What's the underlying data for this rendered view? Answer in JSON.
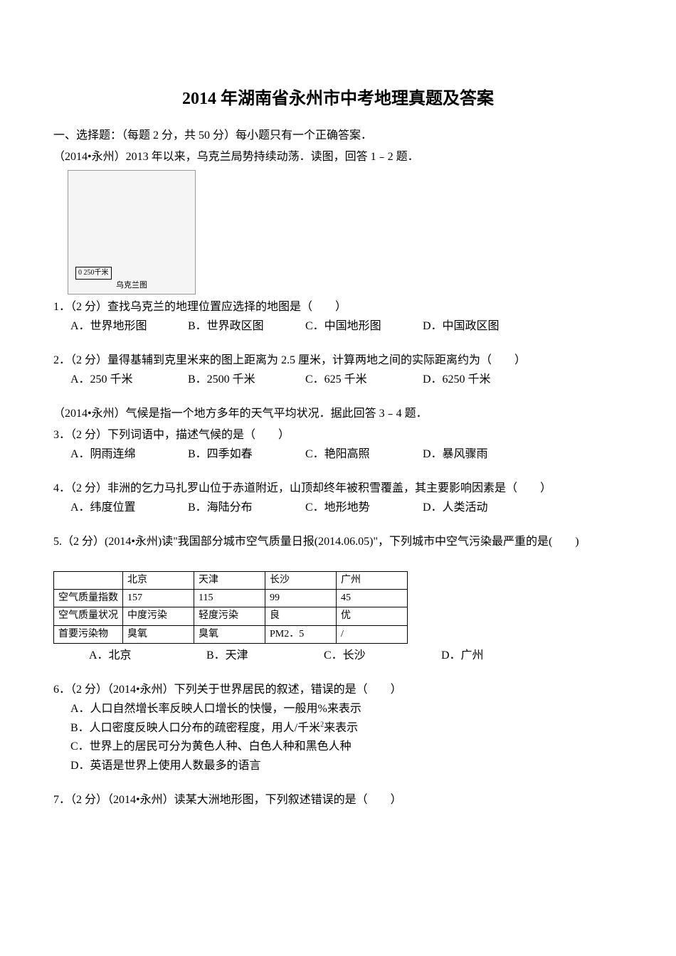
{
  "title": "2014 年湖南省永州市中考地理真题及答案",
  "section": {
    "intro": "一、选择题：（每题 2 分，共 50 分）每小题只有一个正确答案．",
    "context1": "（2014•永州）2013 年以来，乌克兰局势持续动荡．读图，回答 1﹣2 题．",
    "map_scale": "0  250千米",
    "map_caption": "乌克兰图",
    "context2": "（2014•永州）气候是指一个地方多年的天气平均状况．据此回答 3﹣4 题．"
  },
  "q1": {
    "text": "1．（2 分）查找乌克兰的地理位置应选择的地图是（　　）",
    "a": "A．世界地形图",
    "b": "B．世界政区图",
    "c": "C．中国地形图",
    "d": "D．中国政区图"
  },
  "q2": {
    "text": "2．（2 分）量得基辅到克里米来的图上距离为 2.5 厘米，计算两地之间的实际距离约为（　　）",
    "a": "A．250 千米",
    "b": "B．2500 千米",
    "c": "C．625 千米",
    "d": "D．6250 千米"
  },
  "q3": {
    "text": "3．（2 分）下列词语中，描述气候的是（　　）",
    "a": "A．阴雨连绵",
    "b": "B．四季如春",
    "c": "C．艳阳高照",
    "d": "D．暴风骤雨"
  },
  "q4": {
    "text": "4．（2 分）非洲的乞力马扎罗山位于赤道附近，山顶却终年被积雪覆盖，其主要影响因素是（　　）",
    "a": "A．纬度位置",
    "b": "B．海陆分布",
    "c": "C．地形地势",
    "d": "D．人类活动"
  },
  "q5": {
    "text": "5.（2 分）(2014•永州)读\"我国部分城市空气质量日报(2014.06.05)\"，下列城市中空气污染最严重的是(　　)",
    "table": {
      "columns": [
        "",
        "北京",
        "天津",
        "长沙",
        "广州"
      ],
      "rows": [
        [
          "空气质量指数",
          "157",
          "115",
          "99",
          "45"
        ],
        [
          "空气质量状况",
          "中度污染",
          "轻度污染",
          "良",
          "优"
        ],
        [
          "首要污染物",
          "臭氧",
          "臭氧",
          "PM2．5",
          "/"
        ]
      ]
    },
    "a": "A．北京",
    "b": "B．天津",
    "c": "C．长沙",
    "d": "D．广州"
  },
  "q6": {
    "text": "6．（2 分）（2014•永州）下列关于世界居民的叙述，错误的是（　　）",
    "a": "A．人口自然增长率反映人口增长的快慢，一般用%来表示",
    "b_prefix": "B．人口密度反映人口分布的疏密程度，用人/千米",
    "b_sup": "2",
    "b_suffix": "来表示",
    "c": "C．世界上的居民可分为黄色人种、白色人种和黑色人种",
    "d": "D．英语是世界上使用人数最多的语言"
  },
  "q7": {
    "text": "7．（2 分）（2014•永州）读某大洲地形图，下列叙述错误的是（　　）"
  }
}
